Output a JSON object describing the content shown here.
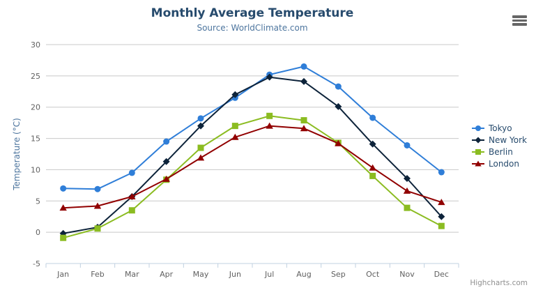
{
  "chart": {
    "title": "Monthly Average Temperature",
    "subtitle": "Source: WorldClimate.com",
    "credits": "Highcharts.com"
  },
  "colors": {
    "title": "#274b6d",
    "subtitle": "#4d759e",
    "axis_title": "#4d759e",
    "axis_labels": "#606060",
    "grid_line": "#c8c8c8",
    "axis_line": "#c0d0e0",
    "legend_text": "#274b6d",
    "credits": "#909090",
    "menu_icon": "#666666",
    "background": "#ffffff"
  },
  "chart_data": {
    "type": "line",
    "title": "Monthly Average Temperature",
    "subtitle": "Source: WorldClimate.com",
    "categories": [
      "Jan",
      "Feb",
      "Mar",
      "Apr",
      "May",
      "Jun",
      "Jul",
      "Aug",
      "Sep",
      "Oct",
      "Nov",
      "Dec"
    ],
    "series": [
      {
        "name": "Tokyo",
        "color": "#2f7ed8",
        "marker": "circle",
        "values": [
          7.0,
          6.9,
          9.5,
          14.5,
          18.2,
          21.5,
          25.2,
          26.5,
          23.3,
          18.3,
          13.9,
          9.6
        ]
      },
      {
        "name": "New York",
        "color": "#0d233a",
        "marker": "diamond",
        "values": [
          -0.2,
          0.8,
          5.7,
          11.3,
          17.0,
          22.0,
          24.8,
          24.1,
          20.1,
          14.1,
          8.6,
          2.5
        ]
      },
      {
        "name": "Berlin",
        "color": "#8bbc21",
        "marker": "square",
        "values": [
          -0.9,
          0.6,
          3.5,
          8.4,
          13.5,
          17.0,
          18.6,
          17.9,
          14.3,
          9.0,
          3.9,
          1.0
        ]
      },
      {
        "name": "London",
        "color": "#910000",
        "marker": "triangle",
        "values": [
          3.9,
          4.2,
          5.7,
          8.5,
          11.9,
          15.2,
          17.0,
          16.6,
          14.2,
          10.3,
          6.6,
          4.8
        ]
      }
    ],
    "xlabel": "",
    "ylabel": "Temperature (°C)",
    "ylim": [
      -5,
      30
    ],
    "ytick_interval": 5,
    "yticks": [
      -5,
      0,
      5,
      10,
      15,
      20,
      25,
      30
    ],
    "grid": true,
    "legend_position": "right"
  }
}
